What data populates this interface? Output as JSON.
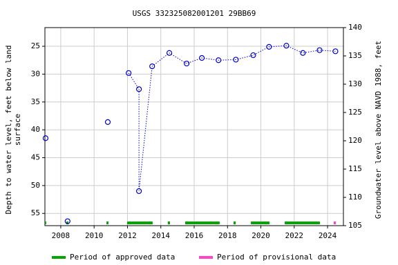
{
  "chart_data": {
    "type": "scatter",
    "title": "USGS 332325082001201 29BB69",
    "ylabel": [
      "Depth to water level, feet below land",
      "surface"
    ],
    "y2label": "Groundwater level above NAVD 1988, feet",
    "xlim": [
      2007.05,
      2024.95
    ],
    "xticks": [
      2008,
      2010,
      2012,
      2014,
      2016,
      2018,
      2020,
      2022,
      2024
    ],
    "ylim": [
      57.2,
      21.65
    ],
    "yticks": [
      25,
      30,
      35,
      40,
      45,
      50,
      55
    ],
    "y2lim": [
      105,
      140
    ],
    "y2ticks": [
      105,
      110,
      115,
      120,
      125,
      130,
      135,
      140
    ],
    "grid": true,
    "x": [
      2007.09,
      null,
      2008.41,
      null,
      2010.82,
      null,
      2012.07,
      2012.69,
      2012.69,
      2013.48,
      2014.51,
      2015.55,
      2016.46,
      2017.46,
      2018.5,
      2019.54,
      2020.49,
      2021.53,
      2022.52,
      2023.52,
      2024.47
    ],
    "series": [
      {
        "color": "#0000cc",
        "values": [
          41.5,
          null,
          56.4,
          null,
          38.6,
          null,
          29.8,
          32.7,
          51.0,
          28.6,
          26.2,
          28.1,
          27.1,
          27.5,
          27.4,
          26.6,
          25.1,
          24.9,
          26.2,
          25.7,
          25.9
        ]
      }
    ],
    "periods": [
      {
        "name": "Period of approved data",
        "color": "#00a800",
        "ranges": [
          [
            2007.05,
            2007.13
          ],
          [
            2008.33,
            2008.46
          ],
          [
            2010.74,
            2010.86
          ],
          [
            2011.98,
            2013.51
          ],
          [
            2014.42,
            2014.55
          ],
          [
            2015.46,
            2017.53
          ],
          [
            2018.36,
            2018.49
          ],
          [
            2019.4,
            2020.52
          ],
          [
            2021.43,
            2023.54
          ]
        ]
      },
      {
        "name": "Period of provisional data",
        "color": "#ff44cc",
        "ranges": [
          [
            2024.37,
            2024.5
          ]
        ]
      }
    ]
  }
}
